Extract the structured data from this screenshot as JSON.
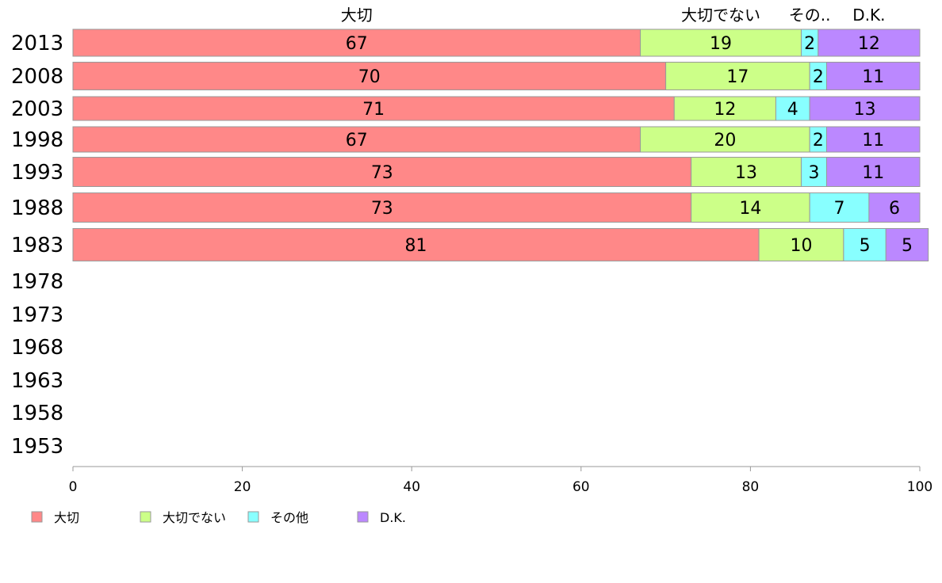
{
  "chart_data": {
    "type": "bar",
    "orientation": "horizontal",
    "stacked": true,
    "categories": [
      "2013",
      "2008",
      "2003",
      "1998",
      "1993",
      "1988",
      "1983",
      "1978",
      "1973",
      "1968",
      "1963",
      "1958",
      "1953"
    ],
    "series": [
      {
        "name": "大切",
        "header": "大切",
        "color": "#ff8888",
        "values": [
          67,
          70,
          71,
          67,
          73,
          73,
          81,
          null,
          null,
          null,
          null,
          null,
          null
        ]
      },
      {
        "name": "大切でない",
        "header": "大切でない",
        "color": "#ccff88",
        "values": [
          19,
          17,
          12,
          20,
          13,
          14,
          10,
          null,
          null,
          null,
          null,
          null,
          null
        ]
      },
      {
        "name": "その他",
        "header": "その..",
        "color": "#88ffff",
        "values": [
          2,
          2,
          4,
          2,
          3,
          7,
          5,
          null,
          null,
          null,
          null,
          null,
          null
        ]
      },
      {
        "name": "D.K.",
        "header": "D.K.",
        "color": "#bb88ff",
        "values": [
          12,
          11,
          13,
          11,
          11,
          6,
          5,
          null,
          null,
          null,
          null,
          null,
          null
        ]
      }
    ],
    "xlim": [
      0,
      100
    ],
    "xticks": [
      0,
      20,
      40,
      60,
      80,
      100
    ],
    "title": "",
    "xlabel": "",
    "ylabel": "",
    "grid": false,
    "legend_position": "bottom-left"
  }
}
